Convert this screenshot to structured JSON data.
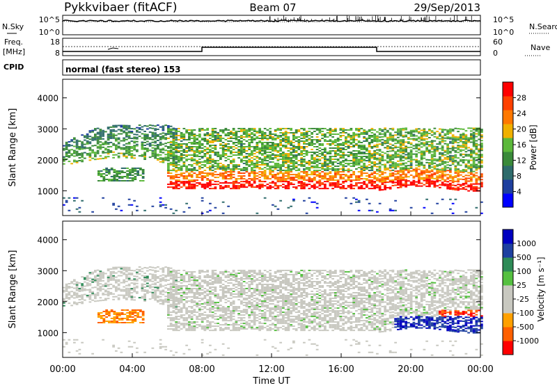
{
  "header": {
    "station": "Pykkvibaer (fitACF)",
    "beam": "Beam 07",
    "date": "29/Sep/2013"
  },
  "noise_panel": {
    "left_label": "N.Sky",
    "left_ticks": [
      "10^5",
      "10^0"
    ],
    "right_label": "N.Search",
    "right_ticks": [
      "10^5",
      "10^0"
    ]
  },
  "freq_panel": {
    "left_label_1": "Freq.",
    "left_label_2": "[MHz]",
    "left_ticks": [
      "18",
      "8"
    ],
    "right_label": "Nave",
    "right_ticks": [
      "60",
      "0"
    ]
  },
  "cpid_panel": {
    "label": "CPID",
    "text": "normal (fast stereo) 153"
  },
  "colors": {
    "power": [
      "#0000ff",
      "#1e3f9e",
      "#2e6b6b",
      "#3a8a3a",
      "#5cb83b",
      "#f0b000",
      "#ff7800",
      "#ff4000",
      "#ff0000"
    ],
    "velocity": [
      "#ff0000",
      "#ff6000",
      "#ffa000",
      "#c8c8c0",
      "#c8c8c0",
      "#55c040",
      "#2e8b57",
      "#1e40a0",
      "#0000c0"
    ],
    "scatter_gray": "#c8c8c0"
  },
  "chart_data": [
    {
      "type": "heatmap",
      "name": "power",
      "ylabel": "Slant Range [km]",
      "yticks": [
        "1000",
        "2000",
        "3000",
        "4000"
      ],
      "ylim": [
        200,
        4600
      ],
      "colorbar_label": "Power [dB]",
      "colorbar_ticks": [
        "4",
        "8",
        "12",
        "16",
        "20",
        "24",
        "28"
      ],
      "colorbar_range": [
        0,
        32
      ]
    },
    {
      "type": "heatmap",
      "name": "velocity",
      "ylabel": "Slant Range [km]",
      "yticks": [
        "1000",
        "2000",
        "3000",
        "4000"
      ],
      "ylim": [
        200,
        4600
      ],
      "colorbar_label": "Velocity [m s⁻¹]",
      "colorbar_ticks": [
        "-1000",
        "-500",
        "-100",
        "-25",
        "25",
        "100",
        "500",
        "1000"
      ]
    }
  ],
  "time_axis": {
    "label": "Time UT",
    "ticks": [
      "00:00",
      "04:00",
      "08:00",
      "12:00",
      "16:00",
      "20:00",
      "00:00"
    ]
  }
}
